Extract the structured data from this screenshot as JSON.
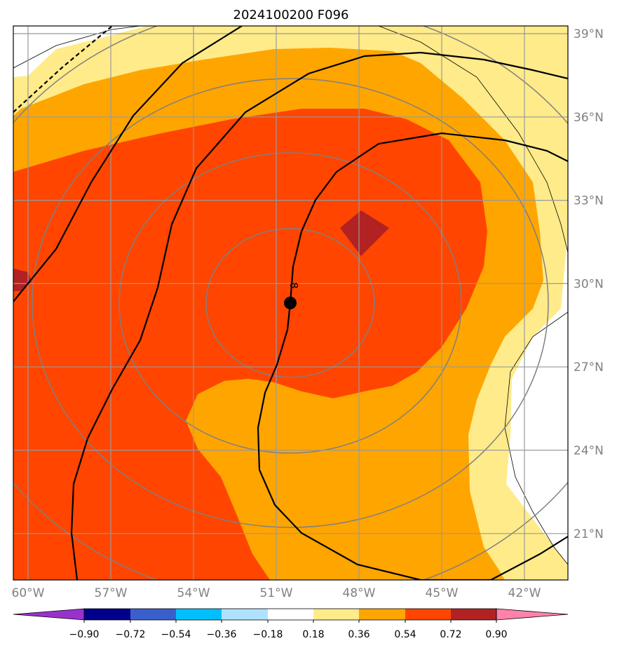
{
  "title": "2024100200 F096",
  "chart_data": {
    "type": "map",
    "title": "2024100200 F096",
    "lon_ticks": [
      "60°W",
      "57°W",
      "54°W",
      "51°W",
      "48°W",
      "45°W",
      "42°W"
    ],
    "lat_ticks": [
      "39°N",
      "36°N",
      "33°N",
      "30°N",
      "27°N",
      "24°N",
      "21°N"
    ],
    "center_marker": {
      "lon": -50.5,
      "lat": 29.3
    },
    "contour_label": "8",
    "colorbar": {
      "ticks": [
        "−0.90",
        "−0.72",
        "−0.54",
        "−0.36",
        "−0.18",
        "0.18",
        "0.36",
        "0.54",
        "0.72",
        "0.90"
      ],
      "colors": [
        "#9932CC",
        "#00008B",
        "#3A5FCD",
        "#00BFFF",
        "#B0E2FF",
        "#FFFFFF",
        "#FFEB8A",
        "#FFA500",
        "#FF4500",
        "#B22222",
        "#FF82AB"
      ]
    },
    "fill_colors": {
      "light": "#FFEB8A",
      "orange": "#FFA500",
      "red": "#FF4500",
      "dark": "#B22222"
    }
  }
}
